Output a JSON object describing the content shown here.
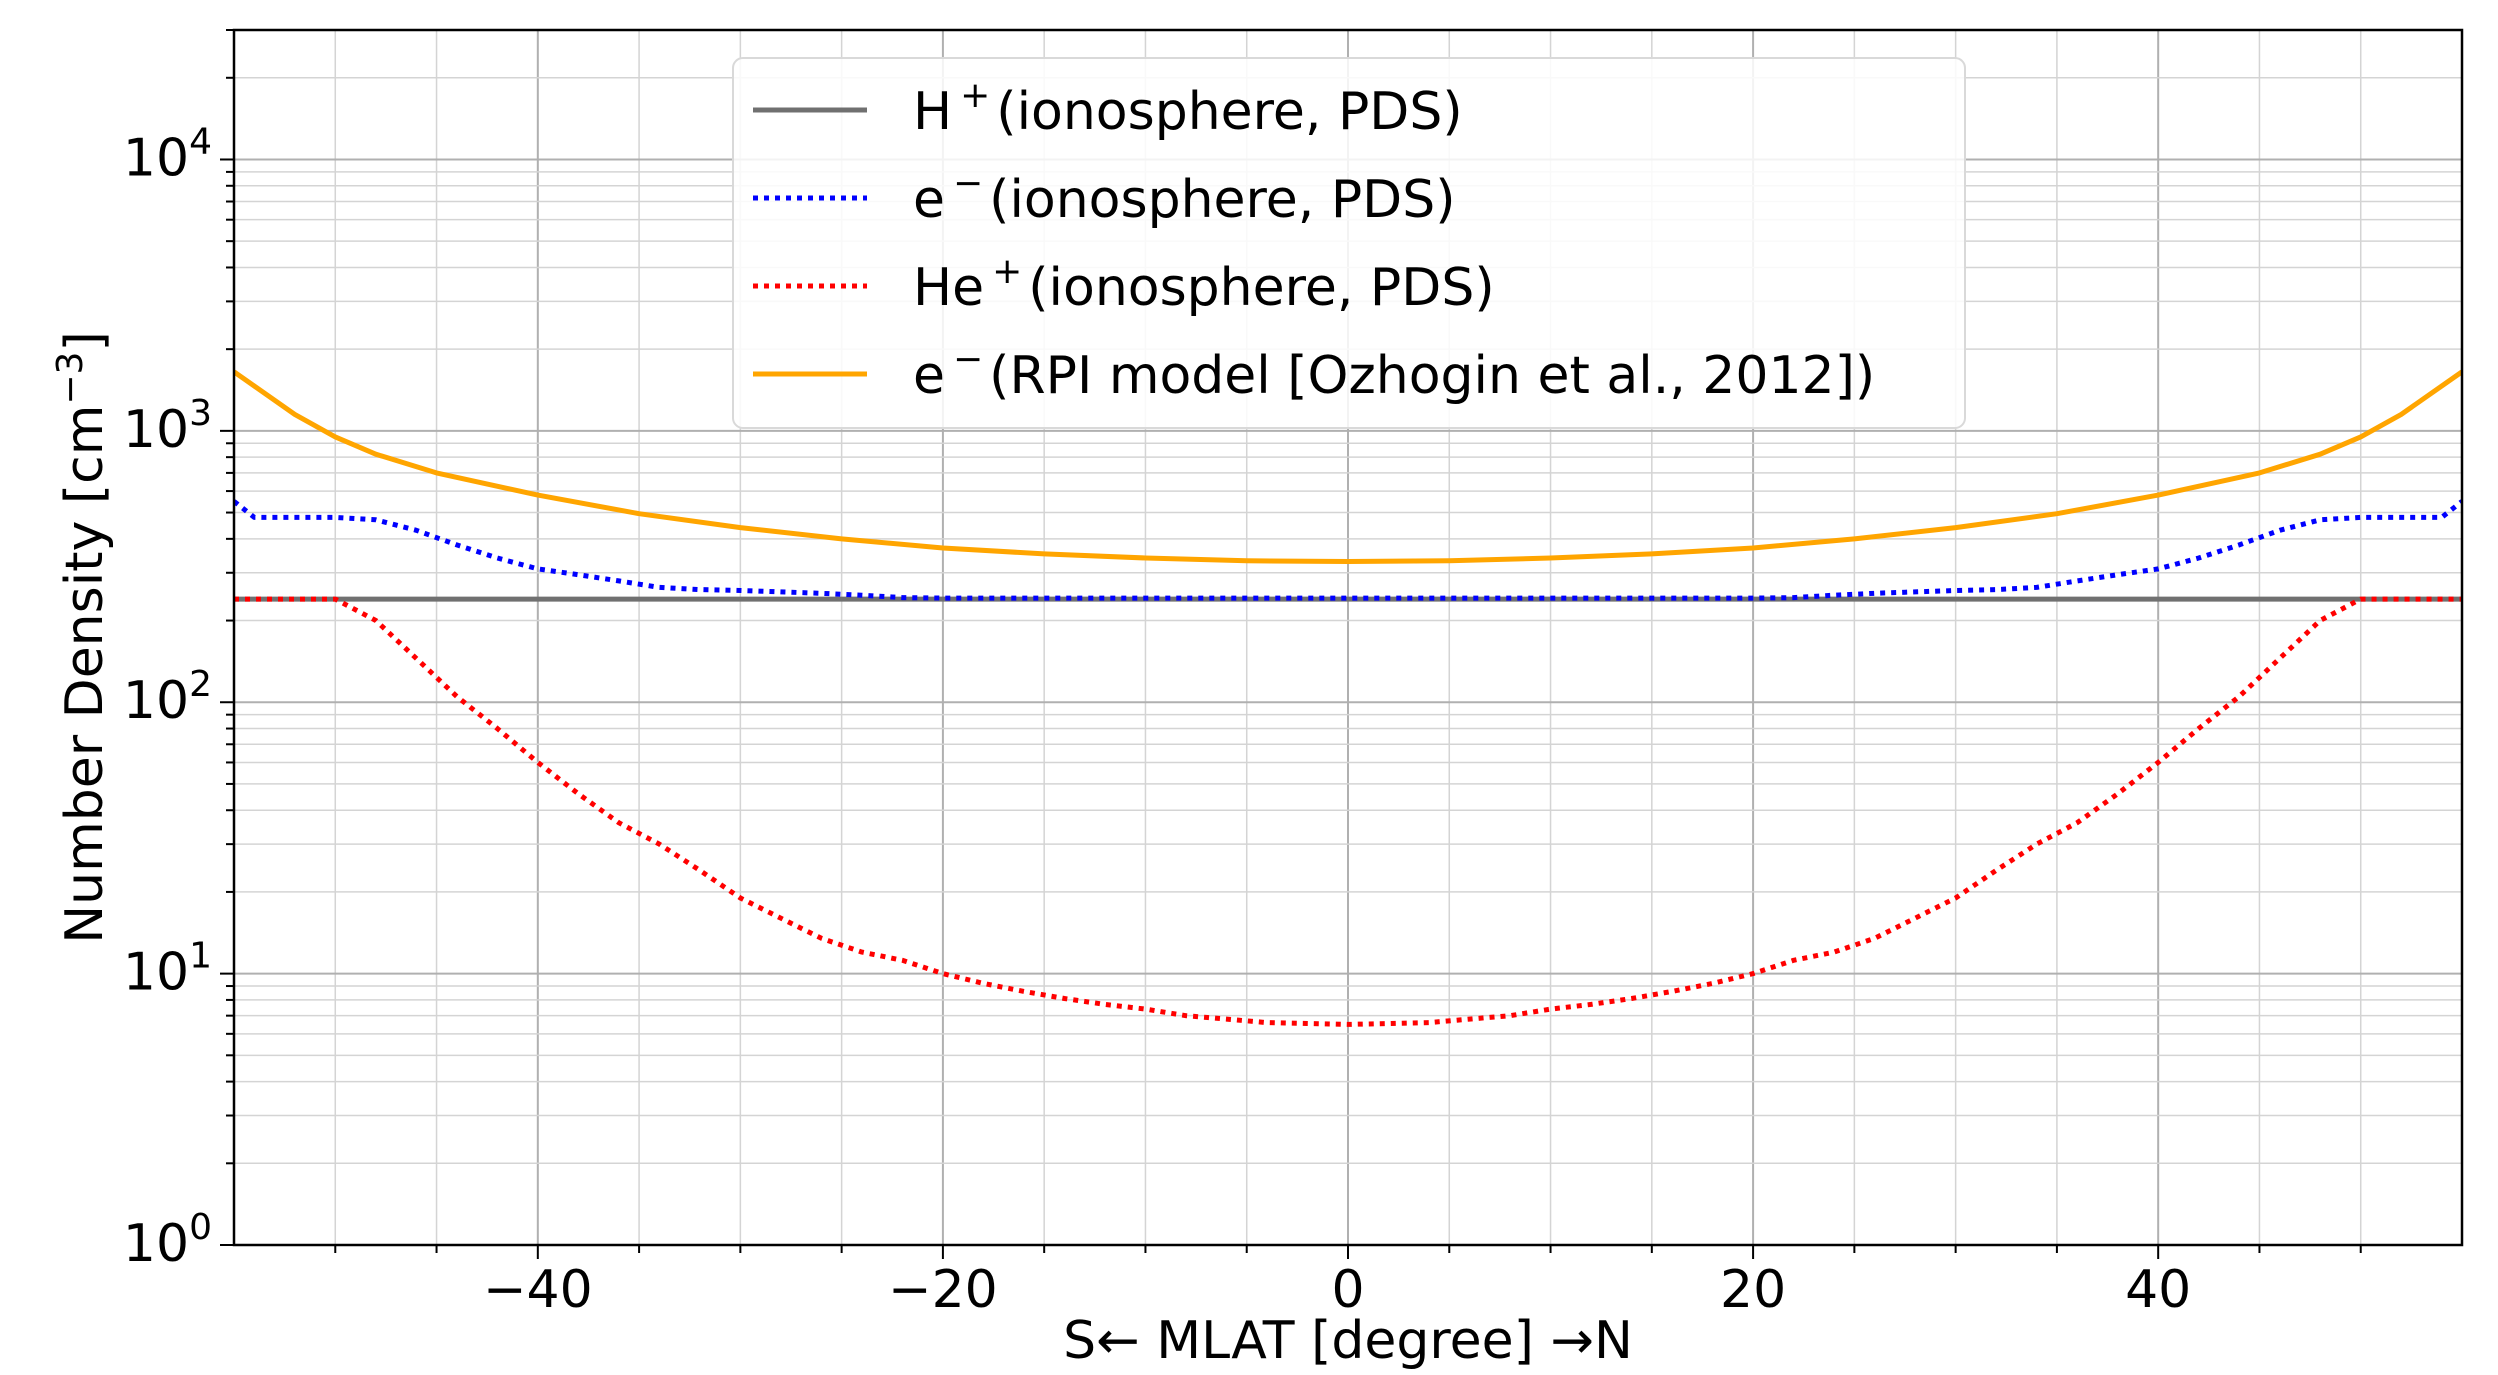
{
  "chart_data": {
    "type": "line",
    "title": "",
    "xlabel": "S← MLAT [degree] →N",
    "ylabel": "Number Density [cm",
    "ylabel_sup": "−3",
    "ylabel_end": "]",
    "xlim": [
      -55,
      55
    ],
    "ylim": [
      1,
      30000
    ],
    "yscale": "log",
    "grid": true,
    "legend_position": "top-center",
    "x_ticks": [
      {
        "value": -40,
        "label": "−40"
      },
      {
        "value": -20,
        "label": "−20"
      },
      {
        "value": 0,
        "label": "0"
      },
      {
        "value": 20,
        "label": "20"
      },
      {
        "value": 40,
        "label": "40"
      }
    ],
    "y_ticks": [
      {
        "value": 1,
        "base": "10",
        "exp": "0"
      },
      {
        "value": 10,
        "base": "10",
        "exp": "1"
      },
      {
        "value": 100,
        "base": "10",
        "exp": "2"
      },
      {
        "value": 1000,
        "base": "10",
        "exp": "3"
      },
      {
        "value": 10000,
        "base": "10",
        "exp": "4"
      }
    ],
    "series": [
      {
        "name": "H",
        "name_sup": "+",
        "name_rest": "(ionosphere, PDS)",
        "color": "#707070",
        "dash": "solid",
        "x": [
          -55,
          0,
          55
        ],
        "y": [
          240,
          240,
          240
        ]
      },
      {
        "name": "e",
        "name_sup": "−",
        "name_rest": "(ionosphere, PDS)",
        "color": "#0000ff",
        "dash": "dotted",
        "x": [
          -55,
          -54,
          -50,
          -48,
          -46,
          -44,
          -42,
          -40,
          -38,
          -36,
          -34,
          -32,
          -30,
          -28,
          -26,
          -24,
          -22,
          -20,
          -15,
          -10,
          -5,
          0,
          5,
          10,
          15,
          20,
          22,
          24,
          26,
          28,
          30,
          32,
          34,
          36,
          38,
          40,
          42,
          44,
          46,
          48,
          50,
          54,
          55
        ],
        "y": [
          550,
          480,
          480,
          470,
          430,
          380,
          340,
          310,
          295,
          280,
          265,
          260,
          258,
          255,
          252,
          248,
          243,
          242,
          242,
          242,
          242,
          242,
          242,
          242,
          242,
          242,
          243,
          248,
          252,
          255,
          258,
          260,
          265,
          280,
          295,
          310,
          340,
          380,
          430,
          470,
          480,
          480,
          550
        ]
      },
      {
        "name": "He",
        "name_sup": "+",
        "name_rest": "(ionosphere, PDS)",
        "color": "#ff0000",
        "dash": "dotted",
        "x": [
          -55,
          -50,
          -48,
          -46,
          -44,
          -42,
          -40,
          -38,
          -36,
          -34,
          -32,
          -30,
          -28,
          -26,
          -24,
          -22,
          -20,
          -18,
          -16,
          -14,
          -12,
          -10,
          -8,
          -6,
          -4,
          -2,
          0,
          2,
          4,
          6,
          8,
          10,
          12,
          14,
          16,
          18,
          20,
          22,
          24,
          26,
          28,
          30,
          32,
          34,
          36,
          38,
          40,
          42,
          44,
          46,
          48,
          50,
          55
        ],
        "y": [
          240,
          240,
          200,
          145,
          105,
          80,
          60,
          46,
          36,
          30,
          24,
          19,
          16,
          13.5,
          12,
          11.2,
          10,
          9.2,
          8.6,
          8.1,
          7.7,
          7.4,
          7.0,
          6.8,
          6.6,
          6.55,
          6.5,
          6.55,
          6.6,
          6.8,
          7.0,
          7.4,
          7.7,
          8.1,
          8.6,
          9.2,
          10,
          11.2,
          12,
          13.5,
          16,
          19,
          24,
          30,
          36,
          46,
          60,
          80,
          105,
          145,
          200,
          240,
          240
        ]
      },
      {
        "name": "e",
        "name_sup": "−",
        "name_rest": "(RPI model [Ozhogin et al., 2012])",
        "color": "#ffa500",
        "dash": "solid",
        "x": [
          -55,
          -52,
          -50,
          -48,
          -45,
          -40,
          -35,
          -30,
          -25,
          -20,
          -15,
          -10,
          -5,
          0,
          5,
          10,
          15,
          20,
          25,
          30,
          35,
          40,
          45,
          48,
          50,
          52,
          55
        ],
        "y": [
          1650,
          1150,
          950,
          820,
          700,
          580,
          495,
          440,
          400,
          370,
          352,
          340,
          332,
          330,
          332,
          340,
          352,
          370,
          400,
          440,
          495,
          580,
          700,
          820,
          950,
          1150,
          1650
        ]
      }
    ]
  }
}
